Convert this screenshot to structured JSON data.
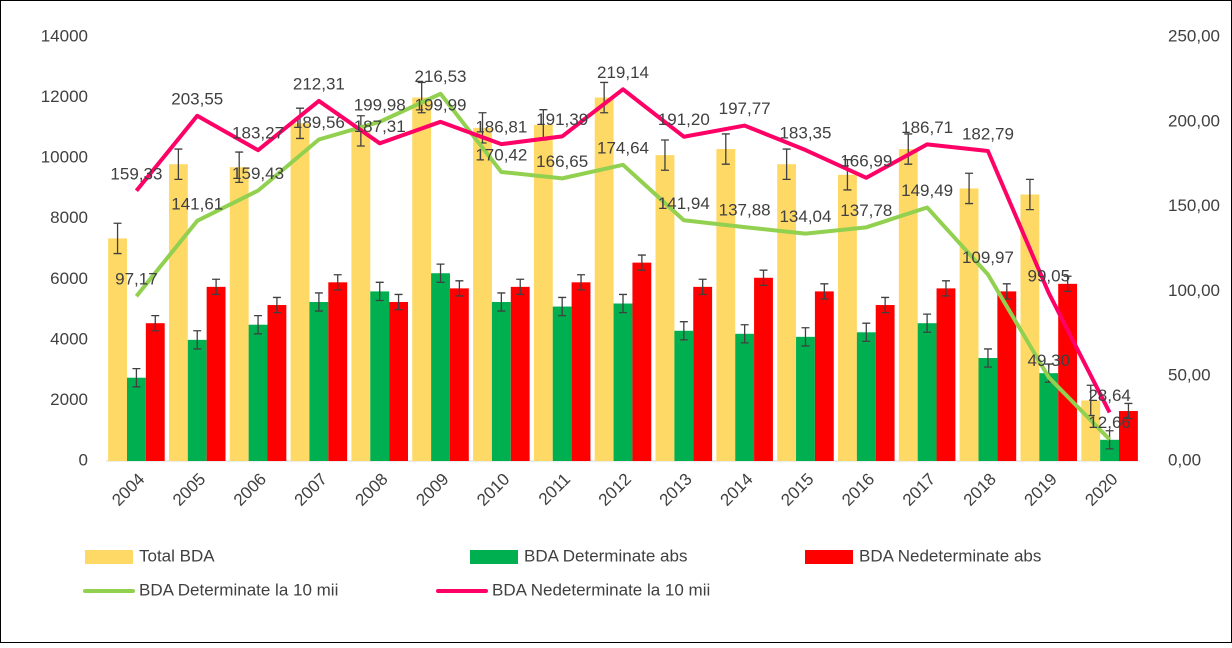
{
  "chart_data": {
    "type": "bar-line",
    "categories": [
      "2004",
      "2005",
      "2006",
      "2007",
      "2008",
      "2009",
      "2010",
      "2011",
      "2012",
      "2013",
      "2014",
      "2015",
      "2016",
      "2017",
      "2018",
      "2019",
      "2020"
    ],
    "ylim": [
      0,
      14000
    ],
    "yticks": [
      0,
      2000,
      4000,
      6000,
      8000,
      10000,
      12000,
      14000
    ],
    "y2lim": [
      0,
      250
    ],
    "y2ticks": [
      {
        "value": 0,
        "label": "0,00"
      },
      {
        "value": 50,
        "label": "50,00"
      },
      {
        "value": 100,
        "label": "100,00"
      },
      {
        "value": 150,
        "label": "150,00"
      },
      {
        "value": 200,
        "label": "200,00"
      },
      {
        "value": 250,
        "label": "250,00"
      }
    ],
    "legend": "bottom",
    "series": [
      {
        "name": "Total BDA",
        "kind": "bar",
        "color": "#ffd966",
        "error": 500,
        "values": [
          7350,
          9800,
          9700,
          11150,
          10900,
          12000,
          11000,
          11100,
          12000,
          10100,
          10300,
          9800,
          9450,
          10300,
          9000,
          8800,
          2000
        ]
      },
      {
        "name": "BDA Determinate abs",
        "kind": "bar",
        "color": "#00b050",
        "error": 300,
        "values": [
          2750,
          4000,
          4500,
          5250,
          5600,
          6200,
          5250,
          5100,
          5200,
          4300,
          4200,
          4100,
          4250,
          4550,
          3400,
          2900,
          700
        ]
      },
      {
        "name": "BDA Nedeterminate abs",
        "kind": "bar",
        "color": "#ff0000",
        "error": 250,
        "values": [
          4550,
          5750,
          5150,
          5900,
          5250,
          5700,
          5750,
          5900,
          6550,
          5750,
          6050,
          5600,
          5150,
          5700,
          5600,
          5850,
          1650
        ]
      },
      {
        "name": "BDA Determinate la 10 mii",
        "kind": "line",
        "axis": "y2",
        "color": "#92d050",
        "values": [
          97.17,
          141.61,
          159.43,
          189.56,
          199.98,
          216.53,
          170.42,
          166.65,
          174.64,
          141.94,
          137.88,
          134.04,
          137.78,
          149.49,
          109.97,
          49.3,
          12.66
        ],
        "value_labels": [
          "97,17",
          "141,61",
          "159,43",
          "189,56",
          "199,98",
          "216,53",
          "170,42",
          "166,65",
          "174,64",
          "141,94",
          "137,88",
          "134,04",
          "137,78",
          "149,49",
          "109,97",
          "49,30",
          "12,66"
        ]
      },
      {
        "name": "BDA Nedeterminate la 10 mii",
        "kind": "line",
        "axis": "y2",
        "color": "#ff0066",
        "values": [
          159.33,
          203.55,
          183.27,
          212.31,
          187.31,
          199.99,
          186.81,
          191.39,
          219.14,
          191.2,
          197.77,
          183.35,
          166.99,
          186.71,
          182.79,
          99.05,
          28.64
        ],
        "value_labels": [
          "159,33",
          "203,55",
          "183,27",
          "212,31",
          "187,31",
          "199,99",
          "186,81",
          "191,39",
          "219,14",
          "191,20",
          "197,77",
          "183,35",
          "166,99",
          "186,71",
          "182,79",
          "99,05",
          "28,64"
        ]
      }
    ]
  }
}
